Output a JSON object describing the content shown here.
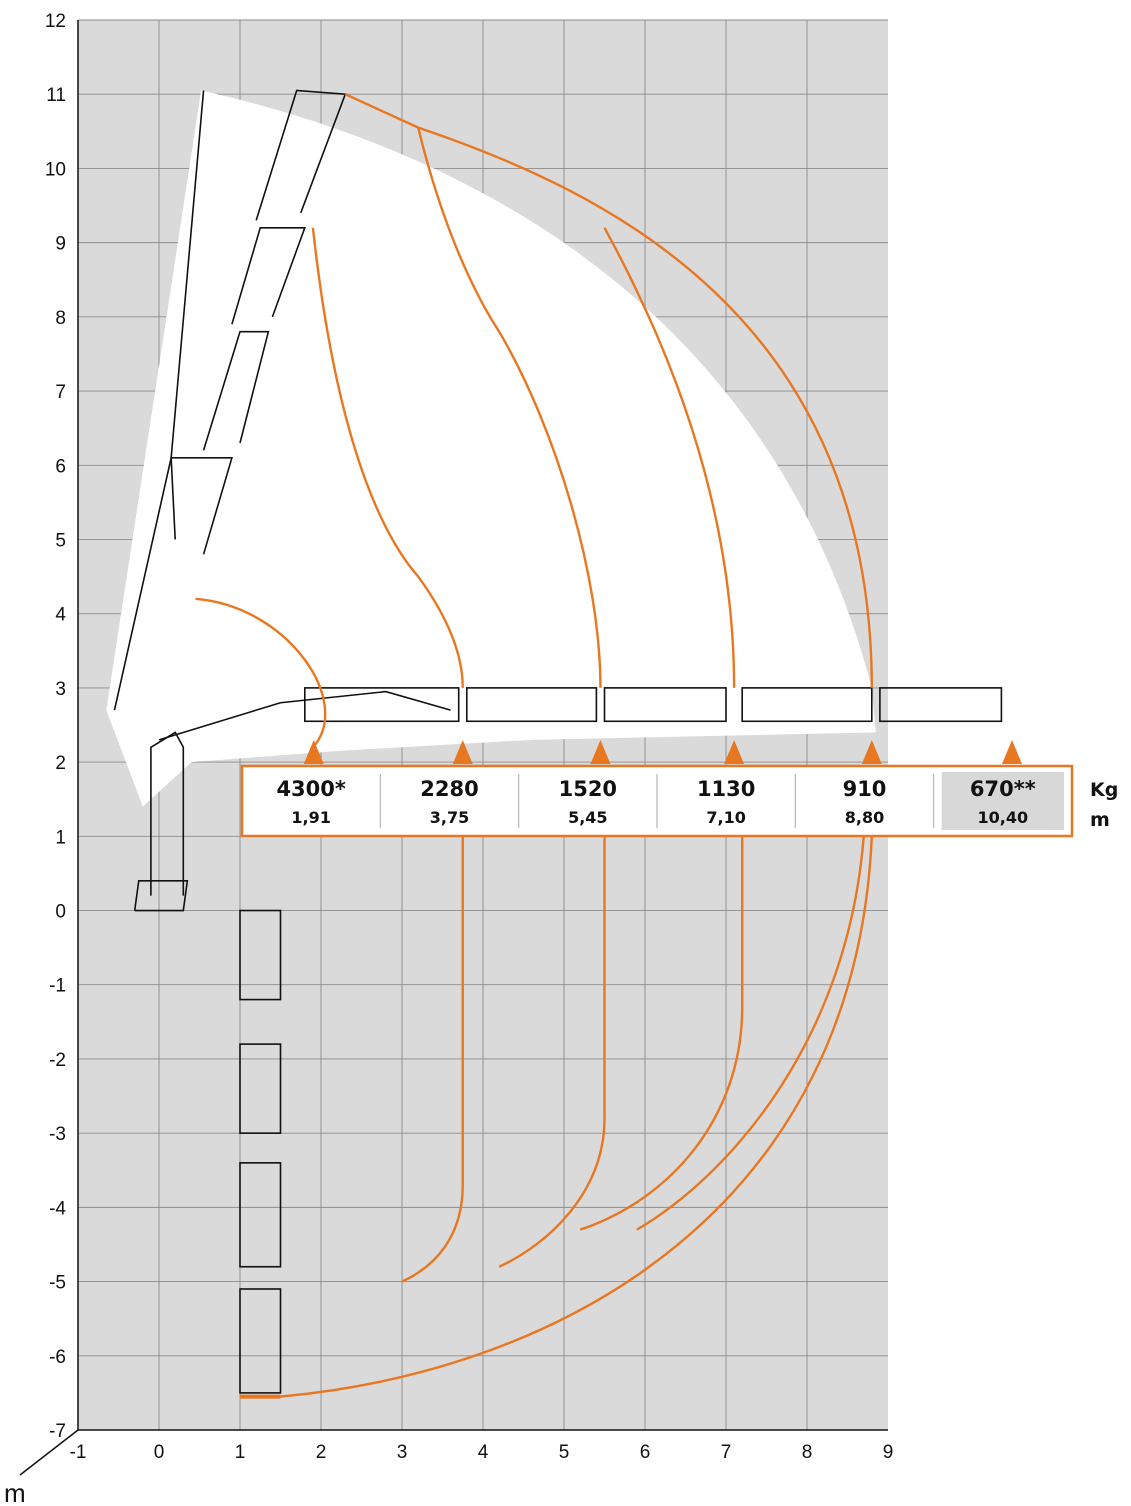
{
  "colors": {
    "accent": "#E87722",
    "grid_bg": "#DADADA",
    "grid_line": "#ffffff",
    "envelope": "#ffffff",
    "highlight_cell": "#D8D8D8"
  },
  "axes": {
    "x_ticks": [
      "-1",
      "0",
      "1",
      "2",
      "3",
      "4",
      "5",
      "6",
      "7",
      "8",
      "9"
    ],
    "y_ticks": [
      "12",
      "11",
      "10",
      "9",
      "8",
      "7",
      "6",
      "5",
      "4",
      "3",
      "2",
      "1",
      "0",
      "-1",
      "-2",
      "-3",
      "-4",
      "-5",
      "-6",
      "-7"
    ],
    "unit_label": "m"
  },
  "chart_data": {
    "type": "table",
    "xlim": [
      -1,
      9
    ],
    "ylim": [
      -7,
      12
    ],
    "units": {
      "load": "Kg",
      "reach": "m"
    },
    "capacities": [
      {
        "load": "4300*",
        "reach": "1,91",
        "reach_value": 1.91
      },
      {
        "load": "2280",
        "reach": "3,75",
        "reach_value": 3.75
      },
      {
        "load": "1520",
        "reach": "5,45",
        "reach_value": 5.45
      },
      {
        "load": "1130",
        "reach": "7,10",
        "reach_value": 7.1
      },
      {
        "load": "910",
        "reach": "8,80",
        "reach_value": 8.8
      },
      {
        "load": "670**",
        "reach": "10,40",
        "reach_value": 10.4
      }
    ]
  }
}
